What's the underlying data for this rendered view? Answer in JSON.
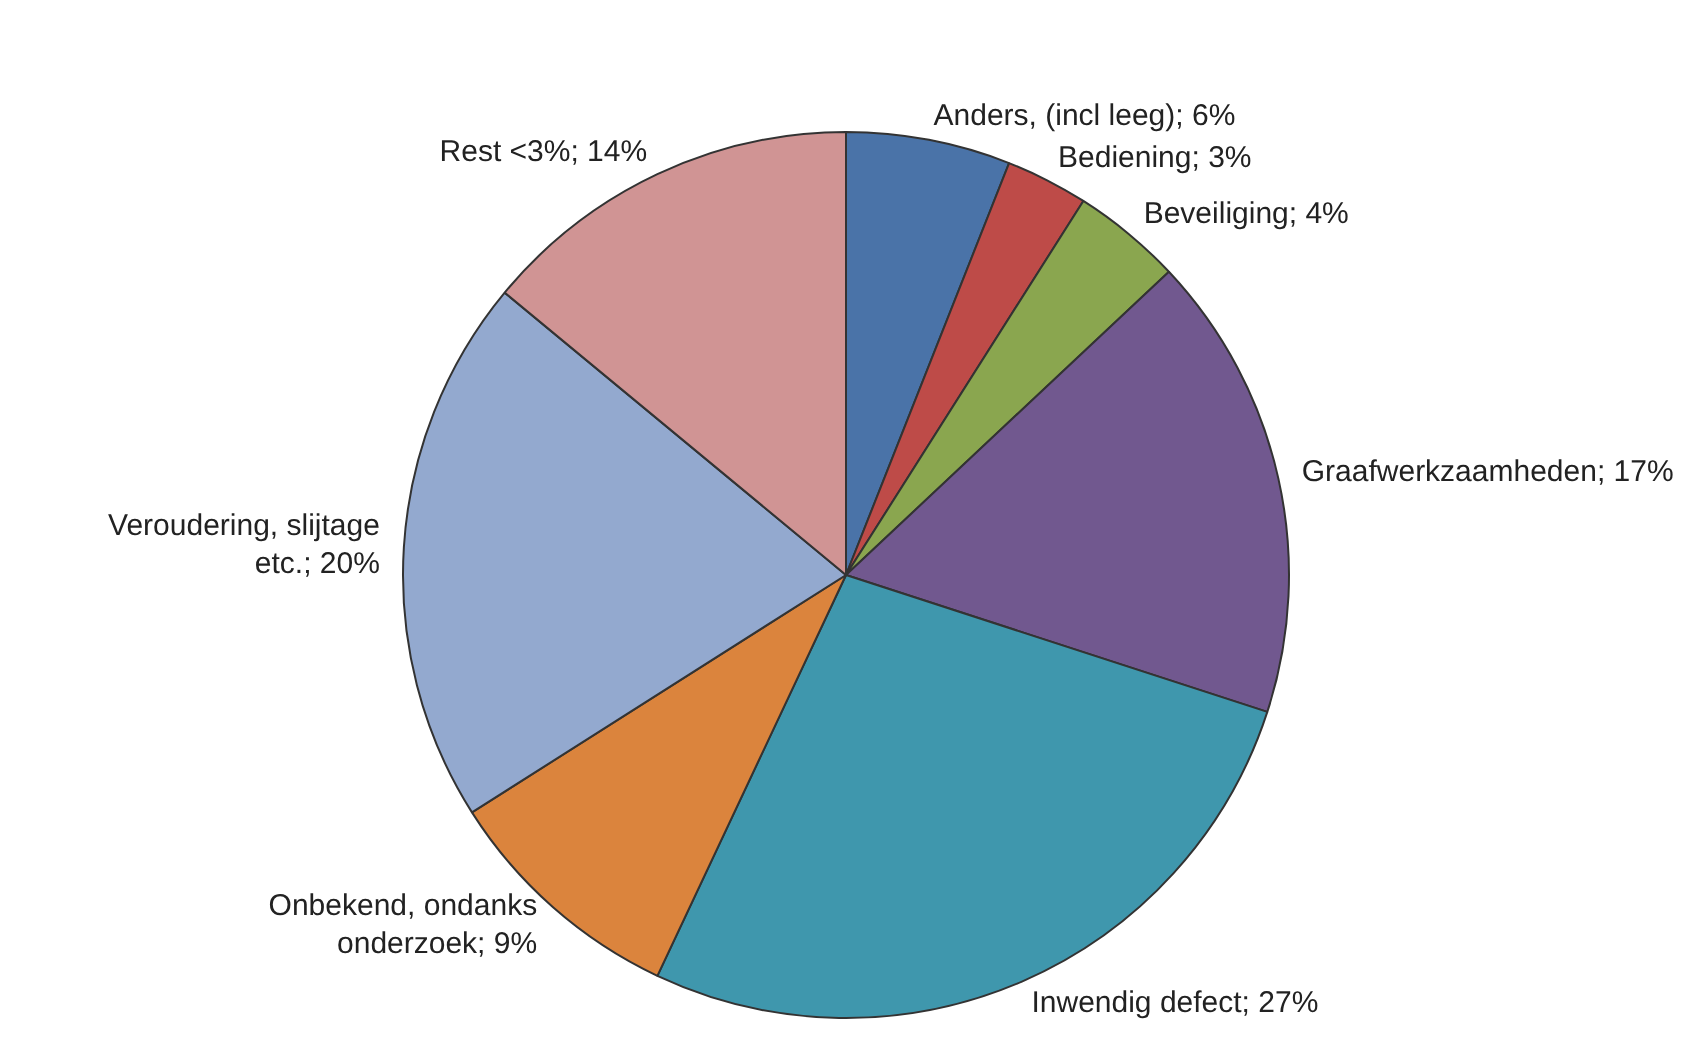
{
  "chart_data": {
    "type": "pie",
    "categories": [
      "Anders, (incl leeg)",
      "Bediening",
      "Beveiliging",
      "Graafwerkzaamheden",
      "Inwendig defect",
      "Onbekend, ondanks onderzoek",
      "Veroudering, slijtage etc.",
      "Rest <3%"
    ],
    "values": [
      6,
      3,
      4,
      17,
      27,
      9,
      20,
      14
    ],
    "value_labels": [
      "6%",
      "3%",
      "4%",
      "17%",
      "27%",
      "9%",
      "20%",
      "14%"
    ],
    "colors": [
      "#4a73a8",
      "#be4b48",
      "#8aa64f",
      "#71588f",
      "#3f97ad",
      "#db843d",
      "#93a9cf",
      "#d09494"
    ],
    "legend": false
  }
}
